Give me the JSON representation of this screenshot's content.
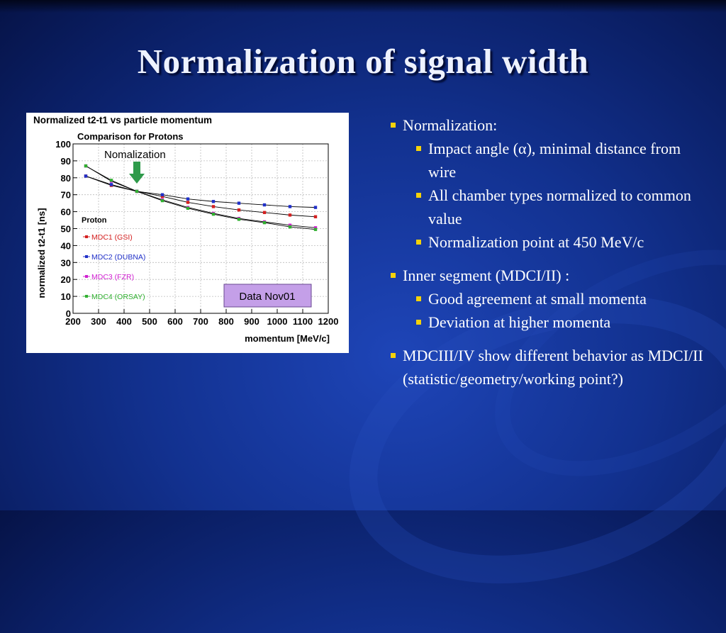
{
  "slide": {
    "title": "Normalization of signal width"
  },
  "bullets": {
    "b1": "Normalization:",
    "b1_sub1": "Impact angle (α), minimal distance from wire",
    "b1_sub2": "All chamber types normalized to common value",
    "b1_sub3": "Normalization point at 450 MeV/c",
    "b2": "Inner segment (MDCI/II) :",
    "b2_sub1": "Good agreement at small momenta",
    "b2_sub2": "Deviation at higher momenta",
    "b3": "MDCIII/IV show different behavior as MDCI/II (statistic/geometry/working point?)"
  },
  "chart_data": {
    "type": "line",
    "title": "Normalized t2-t1 vs particle momentum",
    "subtitle": "Comparison for Protons",
    "xlabel": "momentum [MeV/c]",
    "ylabel": "normalized t2-t1 [ns]",
    "xlim": [
      200,
      1200
    ],
    "ylim": [
      0,
      100
    ],
    "xticks": [
      200,
      300,
      400,
      500,
      600,
      700,
      800,
      900,
      1000,
      1100,
      1200
    ],
    "yticks": [
      0,
      10,
      20,
      30,
      40,
      50,
      60,
      70,
      80,
      90,
      100
    ],
    "grid": true,
    "legend_title": "Proton",
    "legend_position": "left",
    "annotation": "Nomalization",
    "annotation_x": 450,
    "data_label": "Data Nov01",
    "x": [
      250,
      350,
      450,
      550,
      650,
      750,
      850,
      950,
      1050,
      1150
    ],
    "series": [
      {
        "name": "MDC1 (GSI)",
        "color": "#d42020",
        "values": [
          81,
          75.5,
          72,
          69,
          65.5,
          63,
          61,
          59.5,
          58,
          57
        ]
      },
      {
        "name": "MDC2 (DUBNA)",
        "color": "#2030c8",
        "values": [
          81,
          76,
          72,
          70,
          67.5,
          66,
          65,
          64,
          63,
          62.5
        ]
      },
      {
        "name": "MDC3 (FZR)",
        "color": "#d020d0",
        "values": [
          87,
          78,
          72,
          67,
          62.5,
          59,
          56,
          54,
          52,
          50.5
        ]
      },
      {
        "name": "MDC4 (ORSAY)",
        "color": "#30b030",
        "values": [
          87,
          78.5,
          72,
          66.5,
          62,
          58.5,
          55.5,
          53.5,
          51,
          49.5
        ]
      }
    ]
  }
}
